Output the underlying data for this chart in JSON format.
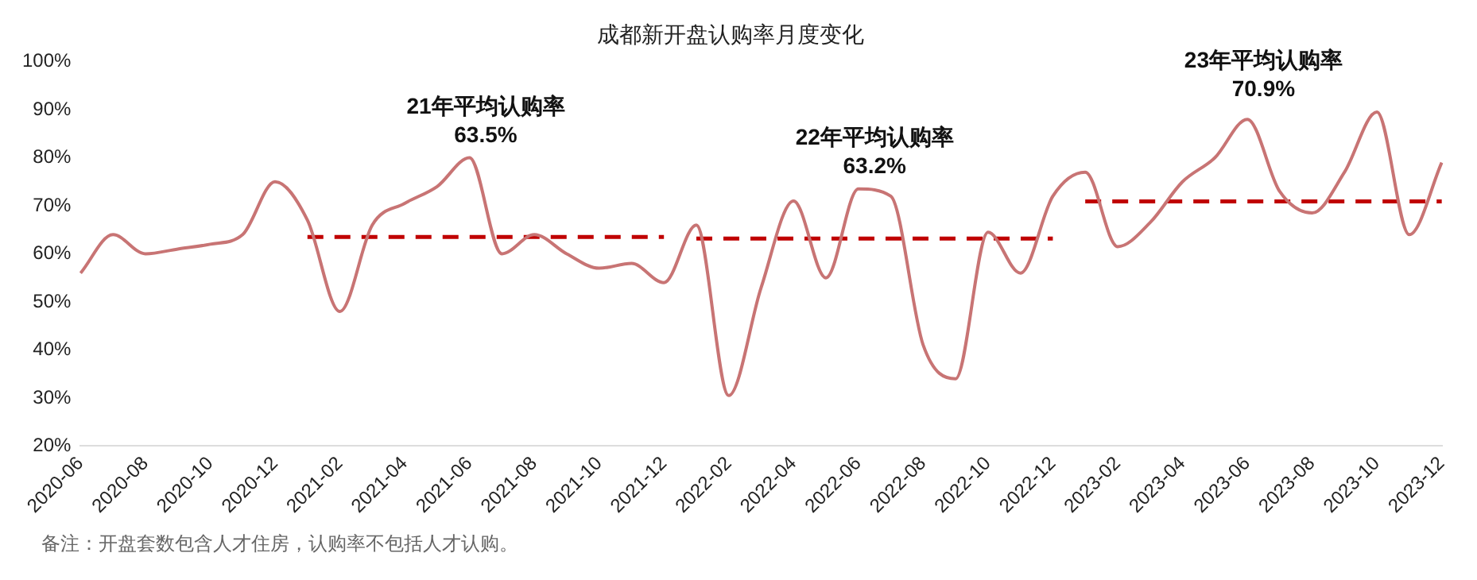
{
  "chart_data": {
    "type": "line",
    "title": "成都新开盘认购率月度变化",
    "categories": [
      "2020-06",
      null,
      "2020-08",
      null,
      "2020-10",
      null,
      "2020-12",
      null,
      "2021-02",
      null,
      "2021-04",
      null,
      "2021-06",
      null,
      "2021-08",
      null,
      "2021-10",
      null,
      "2021-12",
      null,
      "2022-02",
      null,
      "2022-04",
      null,
      "2022-06",
      null,
      "2022-08",
      null,
      "2022-10",
      null,
      "2022-12",
      null,
      "2023-02",
      null,
      "2023-04",
      null,
      "2023-06",
      null,
      "2023-08",
      null,
      "2023-10",
      null,
      "2023-12"
    ],
    "series": [
      {
        "color": "#c87474",
        "values": [
          56,
          64,
          60,
          61,
          62,
          64,
          75,
          67,
          48,
          66,
          70.5,
          74,
          80,
          60,
          64,
          60,
          57,
          58,
          54,
          66,
          30.5,
          53,
          71,
          55,
          73.5,
          72,
          41,
          34,
          64.5,
          56,
          72,
          77,
          61.5,
          66.5,
          75,
          80,
          88,
          73,
          68.5,
          77,
          89.5,
          64,
          79
        ]
      },
      {
        "type": "line",
        "color": "#c00000",
        "line_style": "dashed",
        "values": [
          null,
          null,
          null,
          null,
          null,
          null,
          null,
          63.5,
          63.5,
          63.5,
          63.5,
          63.5,
          63.5,
          63.5,
          63.5,
          63.5,
          63.5,
          63.5,
          63.5,
          null,
          null,
          null,
          null,
          null,
          null,
          null,
          null,
          null,
          null,
          null,
          null,
          null,
          null,
          null,
          null,
          null,
          null,
          null,
          null,
          null,
          null,
          null,
          null
        ]
      },
      {
        "type": "line",
        "color": "#c00000",
        "line_style": "dashed",
        "values": [
          null,
          null,
          null,
          null,
          null,
          null,
          null,
          null,
          null,
          null,
          null,
          null,
          null,
          null,
          null,
          null,
          null,
          null,
          null,
          63.2,
          63.2,
          63.2,
          63.2,
          63.2,
          63.2,
          63.2,
          63.2,
          63.2,
          63.2,
          63.2,
          63.2,
          null,
          null,
          null,
          null,
          null,
          null,
          null,
          null,
          null,
          null,
          null,
          null
        ]
      },
      {
        "type": "line",
        "color": "#c00000",
        "line_style": "dashed",
        "values": [
          null,
          null,
          null,
          null,
          null,
          null,
          null,
          null,
          null,
          null,
          null,
          null,
          null,
          null,
          null,
          null,
          null,
          null,
          null,
          null,
          null,
          null,
          null,
          null,
          null,
          null,
          null,
          null,
          null,
          null,
          null,
          70.9,
          70.9,
          70.9,
          70.9,
          70.9,
          70.9,
          70.9,
          70.9,
          70.9,
          70.9,
          70.9,
          70.9
        ]
      }
    ],
    "annotations": [
      "21年平均认购率\n63.5%",
      "22年平均认购率\n63.2%",
      "23年平均认购率\n70.9%",
      "备注：开盘套数包含人才住房，认购率不包括人才认购。"
    ],
    "ylim": [
      20,
      100
    ],
    "yticks": [
      {
        "value": 20,
        "label": "20%"
      },
      {
        "value": 30,
        "label": "30%"
      },
      {
        "value": 40,
        "label": "40%"
      },
      {
        "value": 50,
        "label": "50%"
      },
      {
        "value": 60,
        "label": "60%"
      },
      {
        "value": 70,
        "label": "70%"
      },
      {
        "value": 80,
        "label": "80%"
      },
      {
        "value": 90,
        "label": "90%"
      },
      {
        "value": 100,
        "label": "100%"
      }
    ],
    "grid": false,
    "legend": false,
    "marker": "none"
  }
}
